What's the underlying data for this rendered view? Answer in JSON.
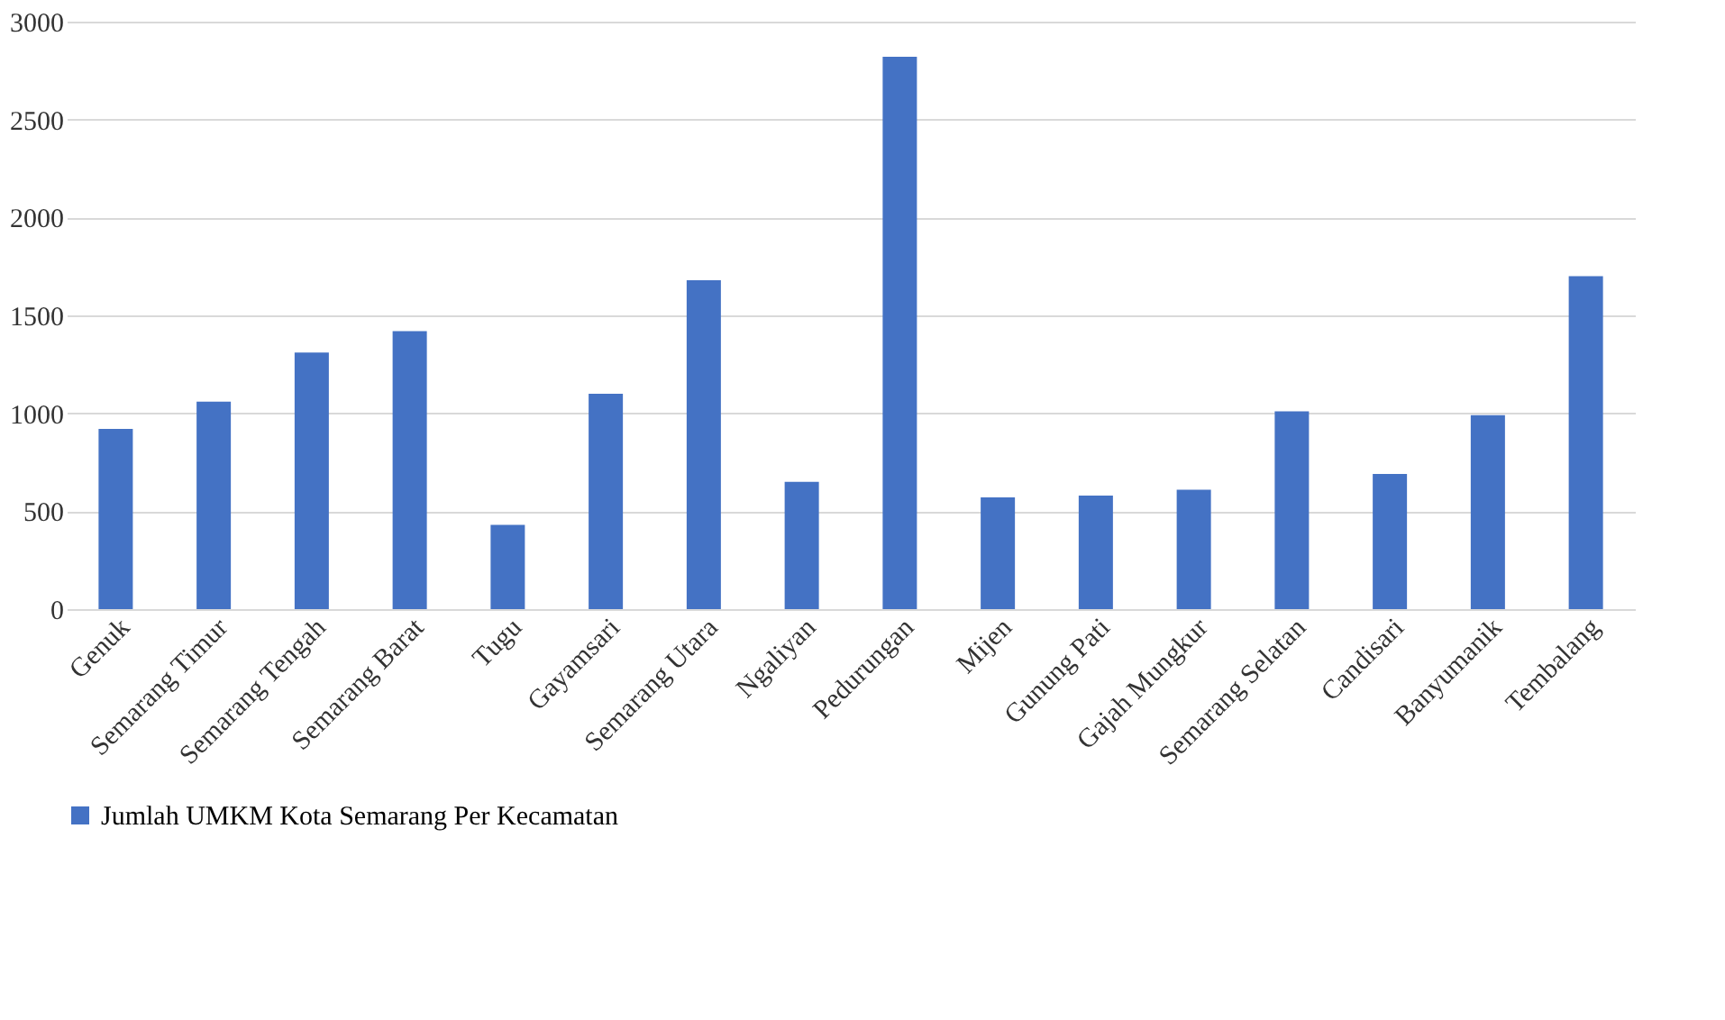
{
  "chart_data": {
    "type": "bar",
    "categories": [
      "Genuk",
      "Semarang Timur",
      "Semarang Tengah",
      "Semarang Barat",
      "Tugu",
      "Gayamsari",
      "Semarang Utara",
      "Ngaliyan",
      "Pedurungan",
      "Mijen",
      "Gunung Pati",
      "Gajah Mungkur",
      "Semarang Selatan",
      "Candisari",
      "Banyumanik",
      "Tembalang"
    ],
    "series": [
      {
        "name": "Jumlah UMKM Kota Semarang Per Kecamatan",
        "color": "#4472c4",
        "values": [
          920,
          1060,
          1310,
          1420,
          430,
          1100,
          1680,
          650,
          2820,
          570,
          580,
          610,
          1010,
          690,
          990,
          1700
        ]
      }
    ],
    "ylim": [
      0,
      3000
    ],
    "yticks": [
      0,
      500,
      1000,
      1500,
      2000,
      2500,
      3000
    ],
    "grid": "y",
    "legend": "bottom"
  }
}
